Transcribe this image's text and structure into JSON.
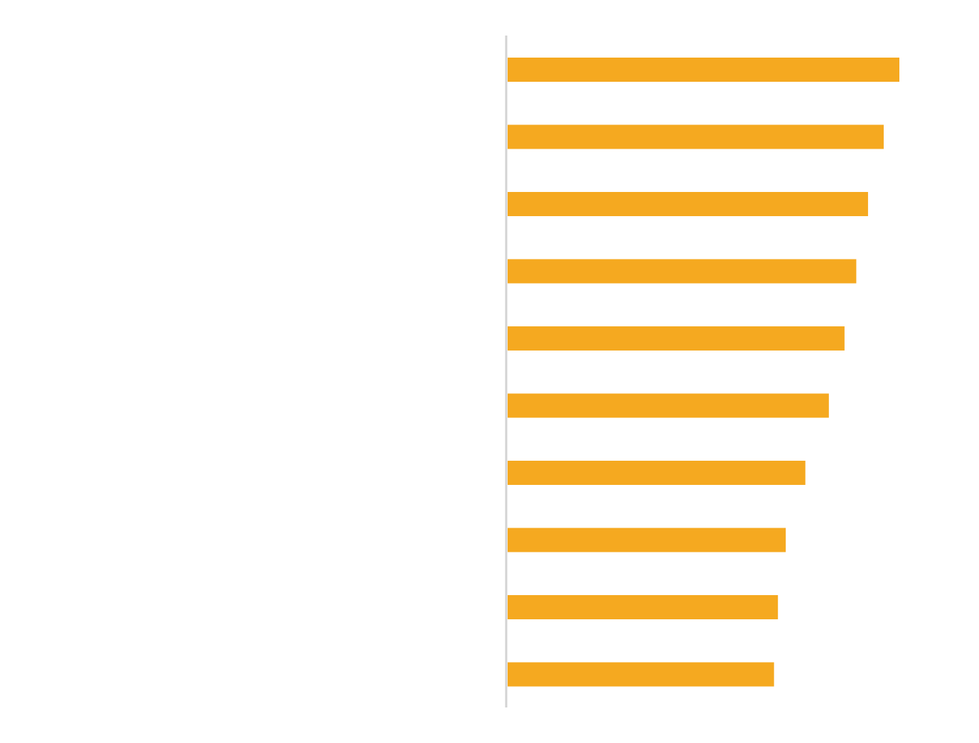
{
  "colors": {
    "bar": "#F5A920",
    "axis": "#D3D3D3",
    "background": "#FFFFFF"
  },
  "chart_data": {
    "type": "bar",
    "orientation": "horizontal",
    "title": "",
    "xlabel": "",
    "ylabel": "",
    "grid": false,
    "legend": "none",
    "categories": [
      "",
      "",
      "",
      "",
      "",
      "",
      "",
      "",
      "",
      ""
    ],
    "values": [
      100,
      96,
      92,
      89,
      86,
      82,
      76,
      71,
      69,
      68
    ],
    "xlim": [
      0,
      100
    ]
  }
}
